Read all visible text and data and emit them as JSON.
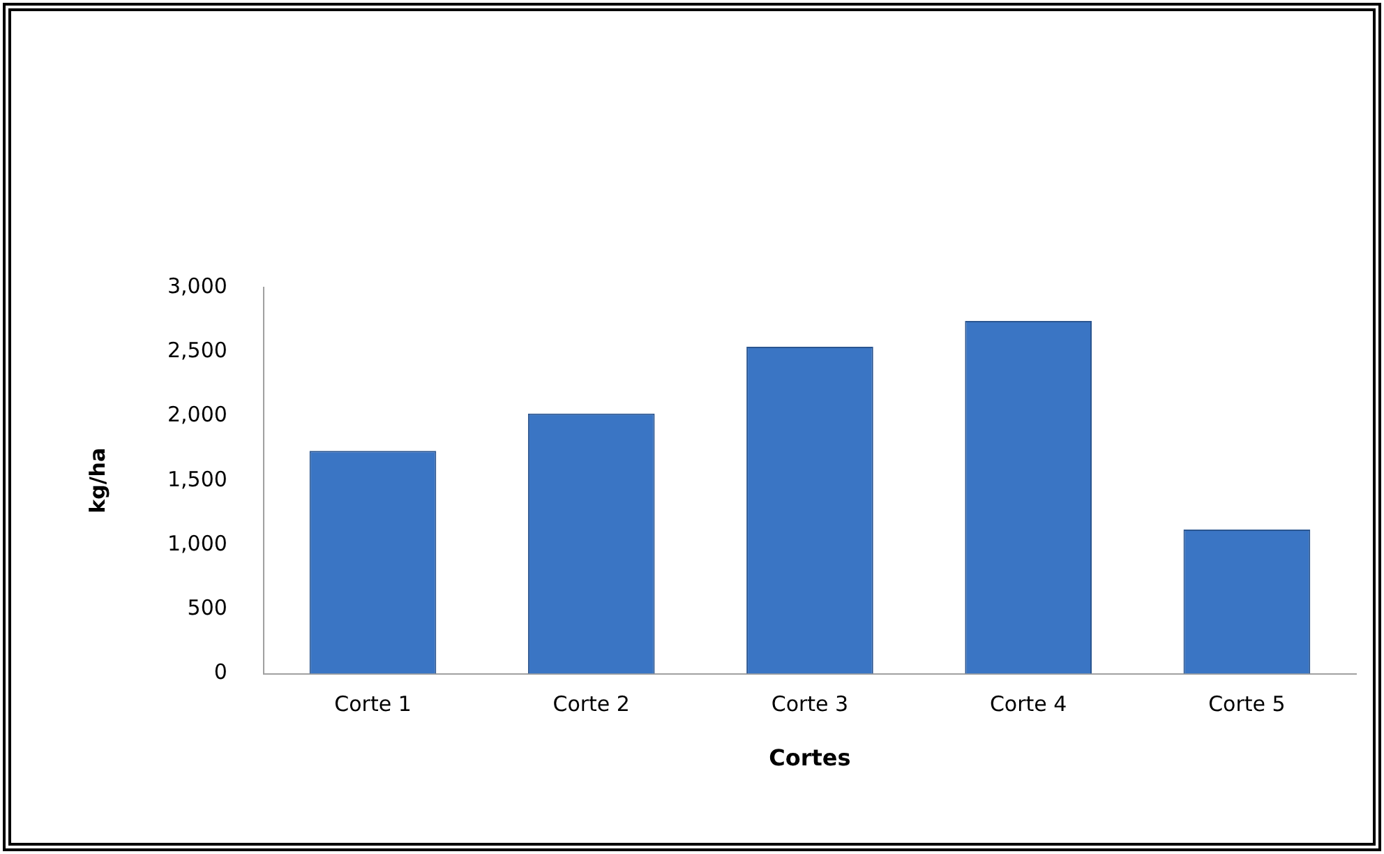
{
  "chart_data": {
    "type": "bar",
    "xlabel": "Cortes",
    "ylabel": "kg/ha",
    "categories": [
      "Corte 1",
      "Corte 2",
      "Corte 3",
      "Corte 4",
      "Corte 5"
    ],
    "values": [
      1730,
      2020,
      2540,
      2740,
      1120
    ],
    "color": "#3a75c4",
    "ylim": [
      0,
      3000
    ],
    "yticks": [
      {
        "value": 0,
        "label": "0"
      },
      {
        "value": 500,
        "label": "500"
      },
      {
        "value": 1000,
        "label": "1,000"
      },
      {
        "value": 1500,
        "label": "1,500"
      },
      {
        "value": 2000,
        "label": "2,000"
      },
      {
        "value": 2500,
        "label": "2,500"
      },
      {
        "value": 3000,
        "label": "3,000"
      }
    ],
    "grid": false,
    "legend": false
  }
}
